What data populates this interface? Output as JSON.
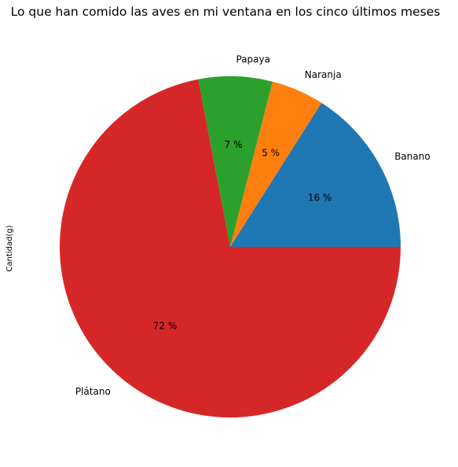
{
  "chart_data": {
    "type": "pie",
    "title": "Lo que han comido las aves en mi ventana en los cinco últimos meses",
    "ylabel": "Cantidad(g)",
    "start_angle_deg": 0,
    "direction": "counterclockwise",
    "slices": [
      {
        "label": "Banano",
        "percent": 16,
        "pct_label": "16 %",
        "color": "#1f77b4"
      },
      {
        "label": "Naranja",
        "percent": 5,
        "pct_label": "5 %",
        "color": "#ff7f0e"
      },
      {
        "label": "Papaya",
        "percent": 7,
        "pct_label": "7 %",
        "color": "#2ca02c"
      },
      {
        "label": "Plátano",
        "percent": 72,
        "pct_label": "72 %",
        "color": "#d62728"
      }
    ]
  }
}
